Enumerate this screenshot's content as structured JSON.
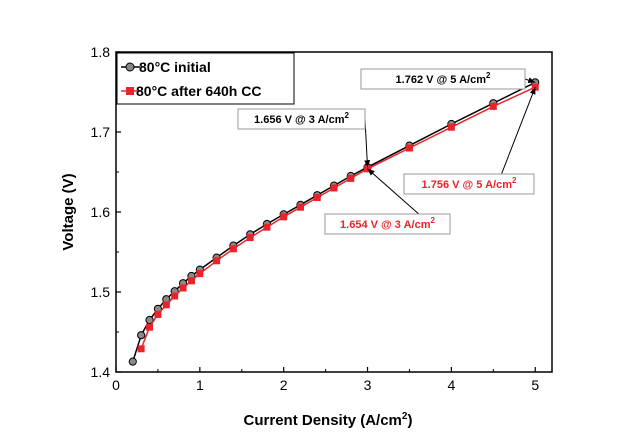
{
  "chart_data": {
    "type": "line",
    "xlabel": "Current Density (A/cm",
    "xlabel_sup": "2",
    "xlabel_end": ")",
    "ylabel": "Voltage (V)",
    "xlim": [
      0,
      5.2
    ],
    "ylim": [
      1.4,
      1.8
    ],
    "x_ticks": [
      "0",
      "1",
      "2",
      "3",
      "4",
      "5"
    ],
    "y_ticks": [
      "1.4",
      "1.5",
      "1.6",
      "1.7",
      "1.8"
    ],
    "grid": false,
    "legend_placement": "top-left",
    "series": [
      {
        "name": "80°C initial",
        "color": "#000000",
        "marker": "circle",
        "x": [
          0.2,
          0.3,
          0.4,
          0.5,
          0.6,
          0.7,
          0.8,
          0.9,
          1.0,
          1.2,
          1.4,
          1.6,
          1.8,
          2.0,
          2.2,
          2.4,
          2.6,
          2.8,
          3.0,
          3.5,
          4.0,
          4.5,
          5.0
        ],
        "values": [
          1.413,
          1.446,
          1.465,
          1.479,
          1.491,
          1.501,
          1.511,
          1.52,
          1.528,
          1.543,
          1.558,
          1.572,
          1.585,
          1.597,
          1.609,
          1.621,
          1.633,
          1.645,
          1.656,
          1.683,
          1.71,
          1.736,
          1.762
        ]
      },
      {
        "name": "80°C after 640h CC",
        "color": "#e8242a",
        "marker": "square",
        "x": [
          0.3,
          0.4,
          0.5,
          0.6,
          0.7,
          0.8,
          0.9,
          1.0,
          1.2,
          1.4,
          1.6,
          1.8,
          2.0,
          2.2,
          2.4,
          2.6,
          2.8,
          3.0,
          3.5,
          4.0,
          4.5,
          5.0
        ],
        "values": [
          1.429,
          1.456,
          1.472,
          1.484,
          1.495,
          1.505,
          1.514,
          1.523,
          1.539,
          1.554,
          1.568,
          1.581,
          1.594,
          1.606,
          1.618,
          1.63,
          1.642,
          1.654,
          1.68,
          1.706,
          1.732,
          1.756
        ]
      }
    ],
    "annotations": [
      {
        "text": "1.762 V @ 5 A/cm",
        "sup": "2",
        "color": "#000000",
        "series": 0,
        "x": 5.0,
        "y": 1.762
      },
      {
        "text": "1.656 V @ 3 A/cm",
        "sup": "2",
        "color": "#000000",
        "series": 0,
        "x": 3.0,
        "y": 1.656
      },
      {
        "text": "1.756 V @ 5 A/cm",
        "sup": "2",
        "color": "#e8242a",
        "series": 1,
        "x": 5.0,
        "y": 1.756
      },
      {
        "text": "1.654 V @ 3 A/cm",
        "sup": "2",
        "color": "#e8242a",
        "series": 1,
        "x": 3.0,
        "y": 1.654
      }
    ]
  }
}
